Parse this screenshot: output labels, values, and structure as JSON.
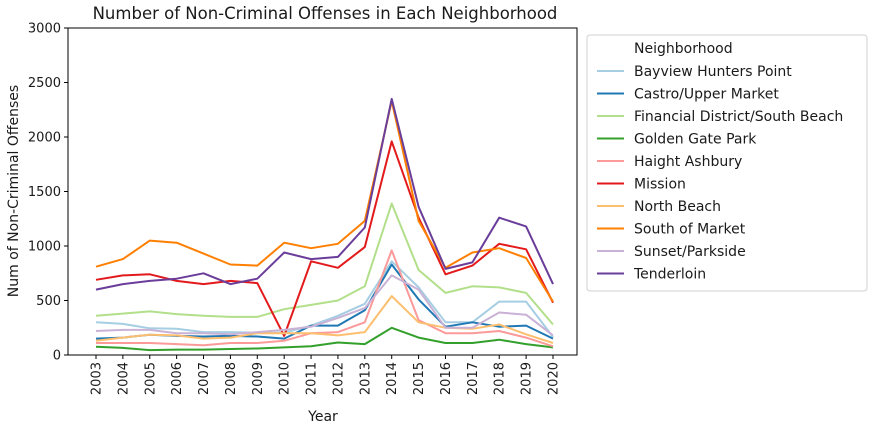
{
  "chart_data": {
    "type": "line",
    "title": "Number of Non-Criminal Offenses in Each Neighborhood",
    "xlabel": "Year",
    "ylabel": "Num of Non-Criminal Offenses",
    "ylim": [
      0,
      3000
    ],
    "yticks": [
      0,
      500,
      1000,
      1500,
      2000,
      2500,
      3000
    ],
    "grid": false,
    "legend_position": "right",
    "legend_title": "Neighborhood",
    "x": [
      "2003",
      "2004",
      "2005",
      "2006",
      "2007",
      "2008",
      "2009",
      "2010",
      "2011",
      "2012",
      "2013",
      "2014",
      "2015",
      "2016",
      "2017",
      "2018",
      "2019",
      "2020"
    ],
    "series": [
      {
        "name": "Bayview Hunters Point",
        "color": "#a6cee3",
        "values": [
          300,
          285,
          245,
          240,
          210,
          210,
          205,
          205,
          270,
          360,
          470,
          860,
          620,
          300,
          300,
          490,
          490,
          165
        ]
      },
      {
        "name": "Castro/Upper Market",
        "color": "#1f78b4",
        "values": [
          150,
          160,
          185,
          175,
          170,
          175,
          170,
          150,
          270,
          270,
          410,
          830,
          510,
          260,
          300,
          260,
          270,
          150
        ]
      },
      {
        "name": "Financial District/South Beach",
        "color": "#b2df8a",
        "values": [
          360,
          380,
          400,
          375,
          360,
          350,
          350,
          420,
          460,
          500,
          630,
          1390,
          780,
          570,
          630,
          620,
          570,
          280
        ]
      },
      {
        "name": "Golden Gate Park",
        "color": "#33a02c",
        "values": [
          75,
          65,
          45,
          50,
          50,
          55,
          60,
          70,
          80,
          115,
          100,
          250,
          160,
          110,
          110,
          140,
          100,
          70
        ]
      },
      {
        "name": "Haight Ashbury",
        "color": "#fb9a99",
        "values": [
          110,
          110,
          110,
          100,
          90,
          110,
          110,
          130,
          200,
          210,
          300,
          960,
          320,
          200,
          200,
          220,
          160,
          80
        ]
      },
      {
        "name": "Mission",
        "color": "#e31a1c",
        "values": [
          690,
          730,
          740,
          680,
          650,
          680,
          660,
          175,
          860,
          800,
          990,
          1960,
          1260,
          740,
          820,
          1020,
          970,
          480
        ]
      },
      {
        "name": "North Beach",
        "color": "#fdbf6f",
        "values": [
          130,
          160,
          185,
          180,
          150,
          160,
          200,
          200,
          200,
          180,
          210,
          540,
          300,
          250,
          240,
          280,
          190,
          110
        ]
      },
      {
        "name": "South of Market",
        "color": "#ff7f00",
        "values": [
          810,
          880,
          1050,
          1030,
          930,
          830,
          820,
          1030,
          980,
          1020,
          1230,
          2330,
          1230,
          800,
          940,
          980,
          890,
          490
        ]
      },
      {
        "name": "Sunset/Parkside",
        "color": "#cab2d6",
        "values": [
          220,
          230,
          230,
          200,
          200,
          190,
          210,
          230,
          260,
          340,
          430,
          730,
          600,
          250,
          250,
          390,
          370,
          180
        ]
      },
      {
        "name": "Tenderloin",
        "color": "#6a3d9a",
        "values": [
          600,
          650,
          680,
          700,
          750,
          650,
          700,
          940,
          880,
          900,
          1170,
          2350,
          1360,
          790,
          850,
          1260,
          1180,
          650
        ]
      }
    ]
  }
}
